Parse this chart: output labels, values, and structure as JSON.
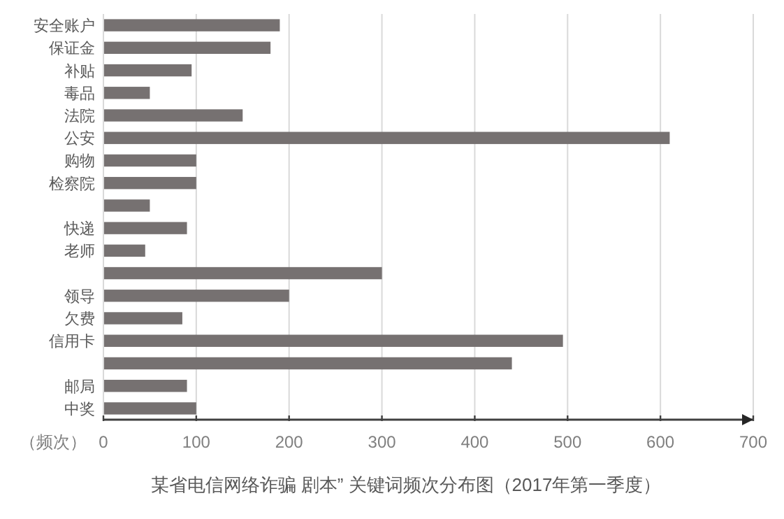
{
  "chart_data": {
    "type": "bar",
    "orientation": "horizontal",
    "title": "某省电信网络诈骗 剧本” 关键词频次分布图（2017年第一季度）",
    "xlabel": "（频次）",
    "categories": [
      "安全账户",
      "保证金",
      "补贴",
      "毒品",
      "法院",
      "公安",
      "购物",
      "检察院",
      null,
      "快递",
      "老师",
      null,
      "领导",
      "欠费",
      "信用卡",
      null,
      "邮局",
      "中奖"
    ],
    "values": [
      190,
      180,
      95,
      50,
      150,
      610,
      100,
      100,
      50,
      90,
      45,
      300,
      200,
      85,
      495,
      440,
      90,
      100
    ],
    "color": "#767171",
    "xlim": [
      0,
      700
    ],
    "xticks": [
      0,
      100,
      200,
      300,
      400,
      500,
      600,
      700
    ],
    "grid": "x"
  }
}
